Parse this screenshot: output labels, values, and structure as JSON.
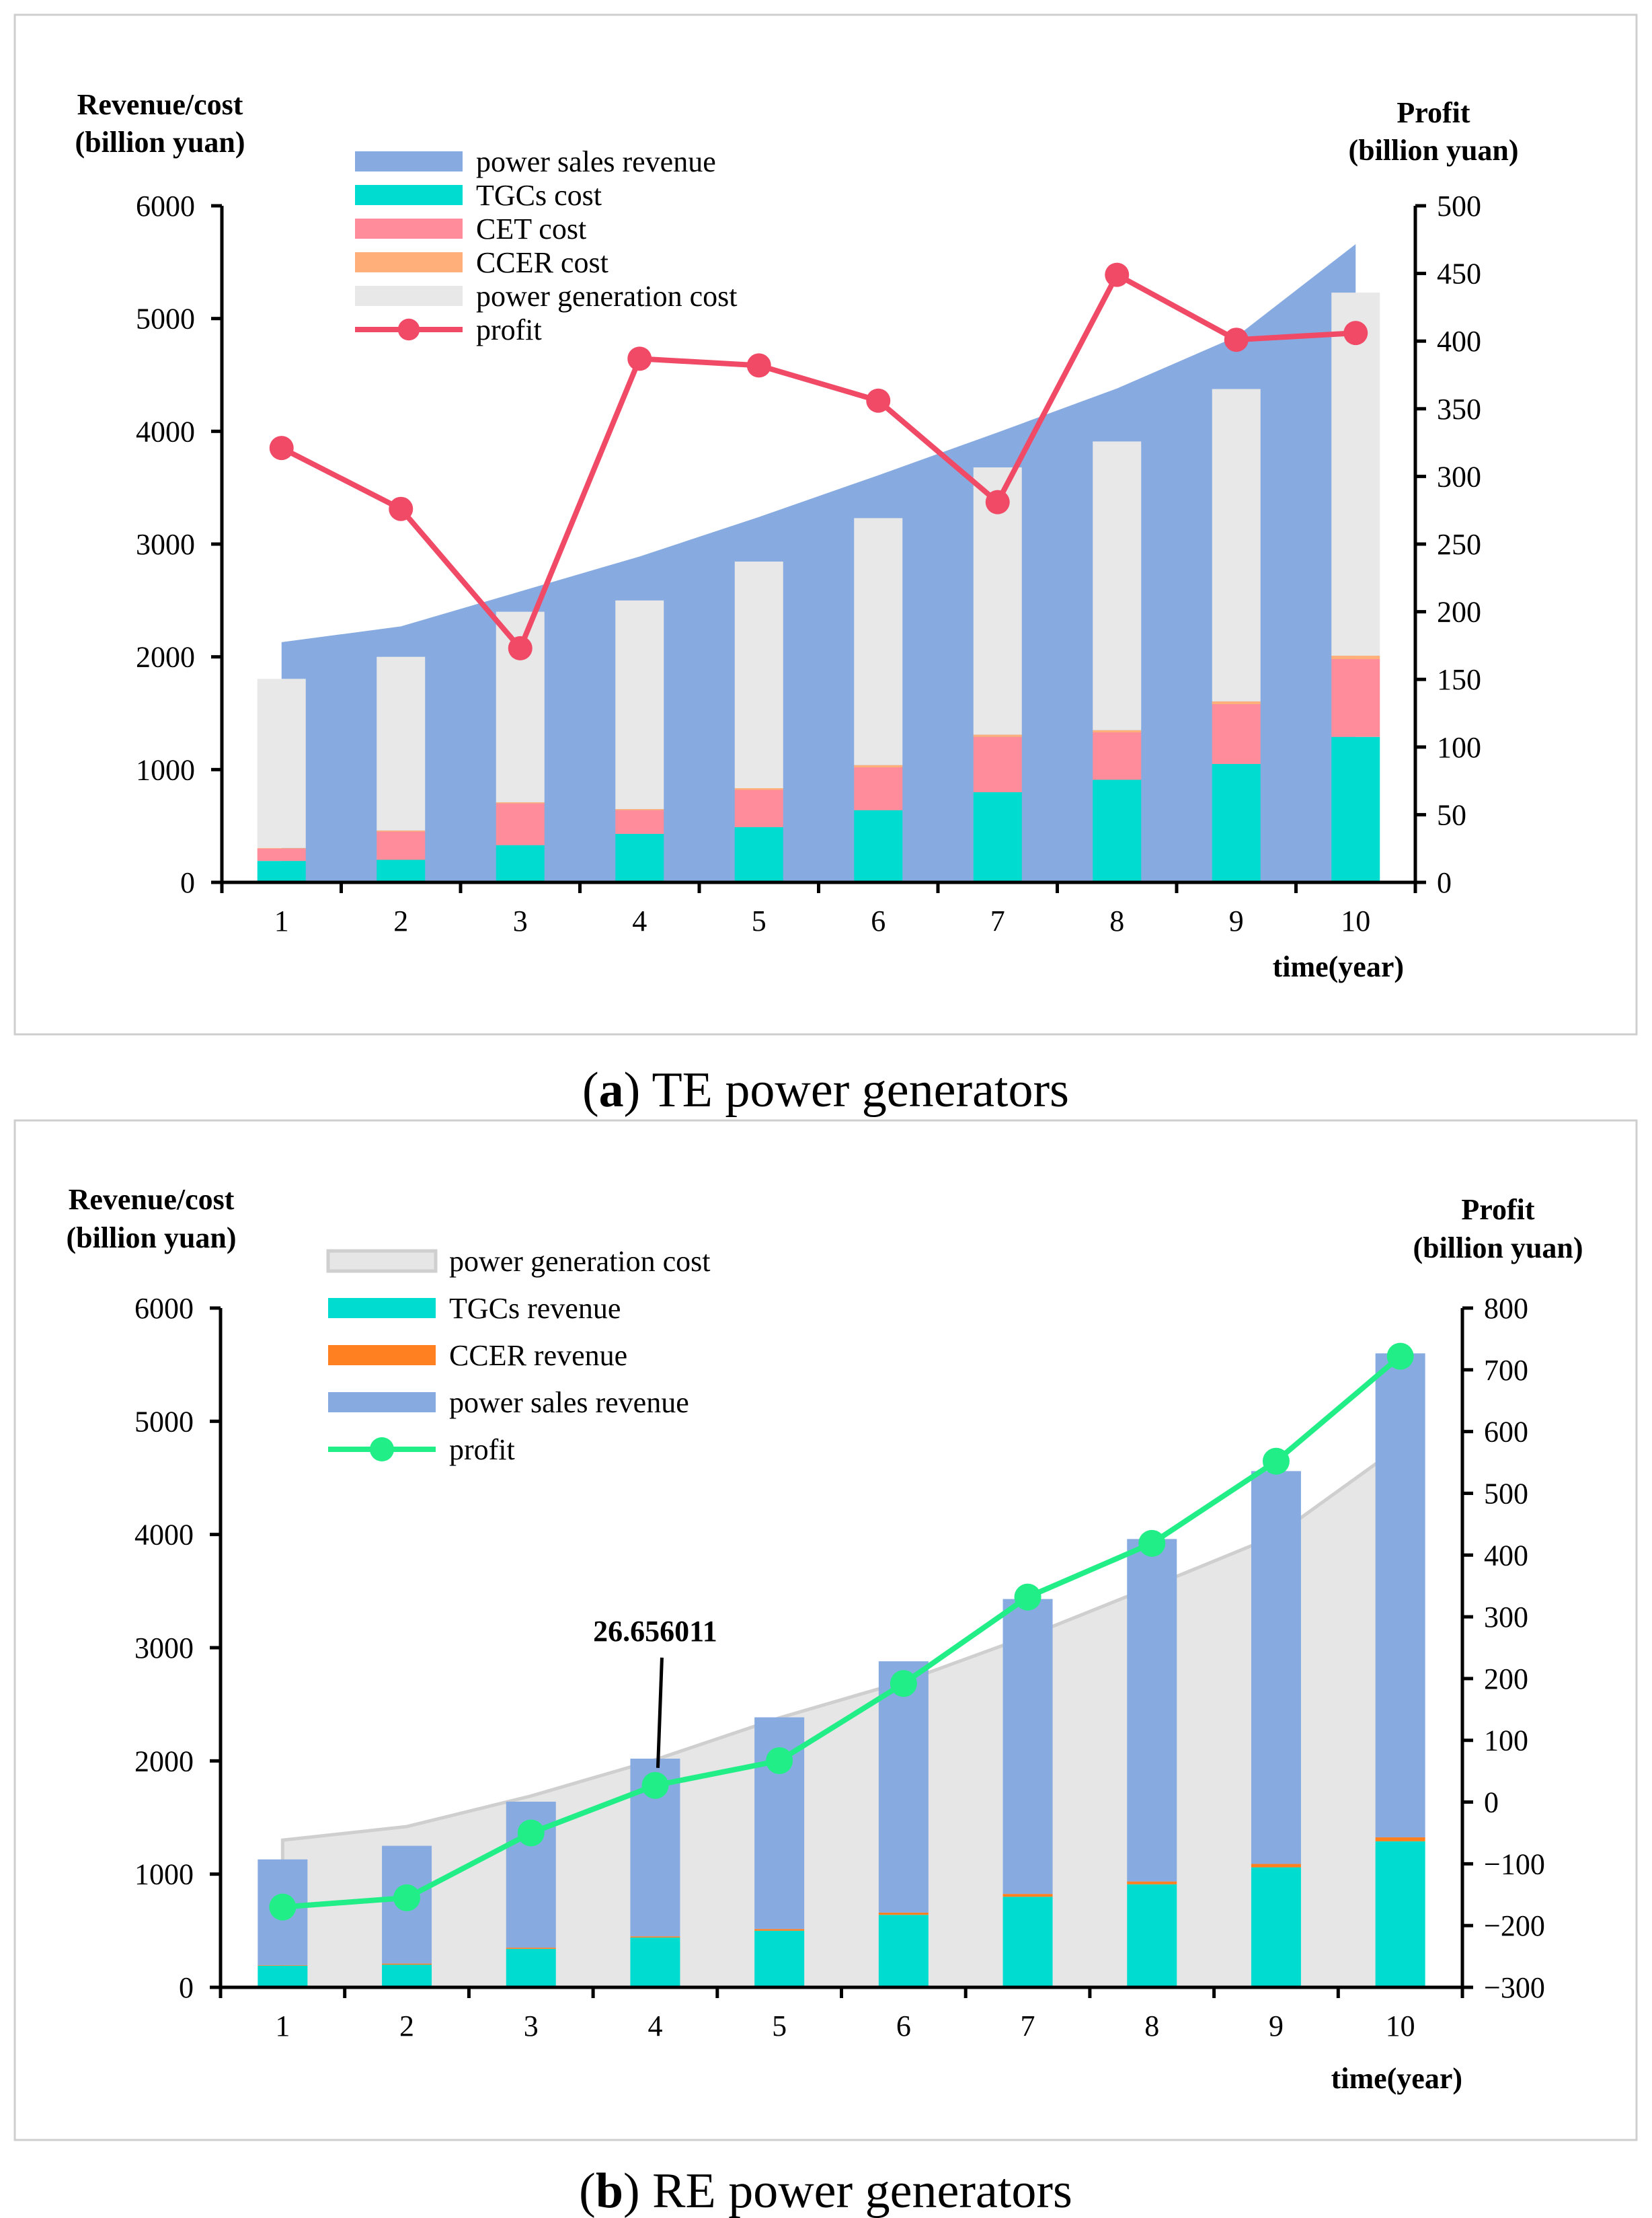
{
  "chart_data": [
    {
      "type": "bar",
      "caption_letter": "a",
      "caption_text": "TE power generators",
      "ylabel_left": [
        "Revenue/cost",
        "(billion yuan)"
      ],
      "ylabel_right": [
        "Profit",
        "(billion yuan)"
      ],
      "xlabel": "time(year)",
      "categories": [
        "1",
        "2",
        "3",
        "4",
        "5",
        "6",
        "7",
        "8",
        "9",
        "10"
      ],
      "ylim_left": [
        0,
        6000
      ],
      "yticks_left": [
        0,
        1000,
        2000,
        3000,
        4000,
        5000,
        6000
      ],
      "ylim_right": [
        0,
        500
      ],
      "yticks_right": [
        0,
        50,
        100,
        150,
        200,
        250,
        300,
        350,
        400,
        450,
        500
      ],
      "area": {
        "name": "power sales revenue",
        "color": "#87ABE0",
        "values": [
          2130,
          2270,
          2580,
          2890,
          3240,
          3610,
          3990,
          4380,
          4840,
          5660
        ]
      },
      "stack": [
        {
          "name": "TGCs cost",
          "color": "#00DDD0",
          "values": [
            190,
            200,
            330,
            430,
            490,
            640,
            800,
            910,
            1050,
            1290
          ]
        },
        {
          "name": "CET cost",
          "color": "#FF8C9A",
          "values": [
            110,
            250,
            370,
            210,
            330,
            380,
            490,
            420,
            530,
            690
          ]
        },
        {
          "name": "CCER cost",
          "color": "#FFB07A",
          "values": [
            5,
            10,
            10,
            10,
            15,
            20,
            20,
            20,
            25,
            30
          ]
        },
        {
          "name": "power generation cost",
          "color": "#E8E8E8",
          "values": [
            1500,
            1540,
            1690,
            1850,
            2010,
            2190,
            2370,
            2560,
            2770,
            3220
          ]
        }
      ],
      "line": {
        "name": "profit",
        "color": "#F04A66",
        "values": [
          321,
          276,
          173,
          387,
          382,
          356,
          281,
          449,
          401,
          406
        ]
      },
      "legend_order": [
        "power sales revenue",
        "TGCs cost",
        "CET cost",
        "CCER cost",
        "power generation cost",
        "profit"
      ]
    },
    {
      "type": "bar",
      "caption_letter": "b",
      "caption_text": "RE power generators",
      "ylabel_left": [
        "Revenue/cost",
        "(billion yuan)"
      ],
      "ylabel_right": [
        "Profit",
        "(billion yuan)"
      ],
      "xlabel": "time(year)",
      "categories": [
        "1",
        "2",
        "3",
        "4",
        "5",
        "6",
        "7",
        "8",
        "9",
        "10"
      ],
      "ylim_left": [
        0,
        6000
      ],
      "yticks_left": [
        0,
        1000,
        2000,
        3000,
        4000,
        5000,
        6000
      ],
      "ylim_right": [
        -300,
        800
      ],
      "yticks_right": [
        -300,
        -200,
        -100,
        0,
        100,
        200,
        300,
        400,
        500,
        600,
        700,
        800
      ],
      "area": {
        "name": "power generation cost",
        "color": "#E6E6E6",
        "values": [
          1300,
          1420,
          1690,
          2010,
          2380,
          2700,
          3100,
          3540,
          3990,
          4780
        ]
      },
      "stack": [
        {
          "name": "TGCs revenue",
          "color": "#00DDD0",
          "values": [
            190,
            200,
            340,
            440,
            500,
            640,
            800,
            910,
            1060,
            1290
          ]
        },
        {
          "name": "CCER revenue",
          "color": "#FF8020",
          "values": [
            5,
            10,
            10,
            10,
            15,
            20,
            25,
            25,
            30,
            35
          ]
        },
        {
          "name": "power sales revenue",
          "color": "#87ABE0",
          "values": [
            935,
            1040,
            1290,
            1570,
            1870,
            2220,
            2605,
            3025,
            3470,
            4275
          ]
        }
      ],
      "line": {
        "name": "profit",
        "color": "#22EE88",
        "values": [
          -170,
          -155,
          -50,
          27,
          67,
          192,
          332,
          419,
          552,
          722
        ]
      },
      "annotation": {
        "text": "26.656011",
        "category": "4"
      },
      "legend_order": [
        "power generation cost",
        "TGCs revenue",
        "CCER revenue",
        "power sales revenue",
        "profit"
      ]
    }
  ]
}
